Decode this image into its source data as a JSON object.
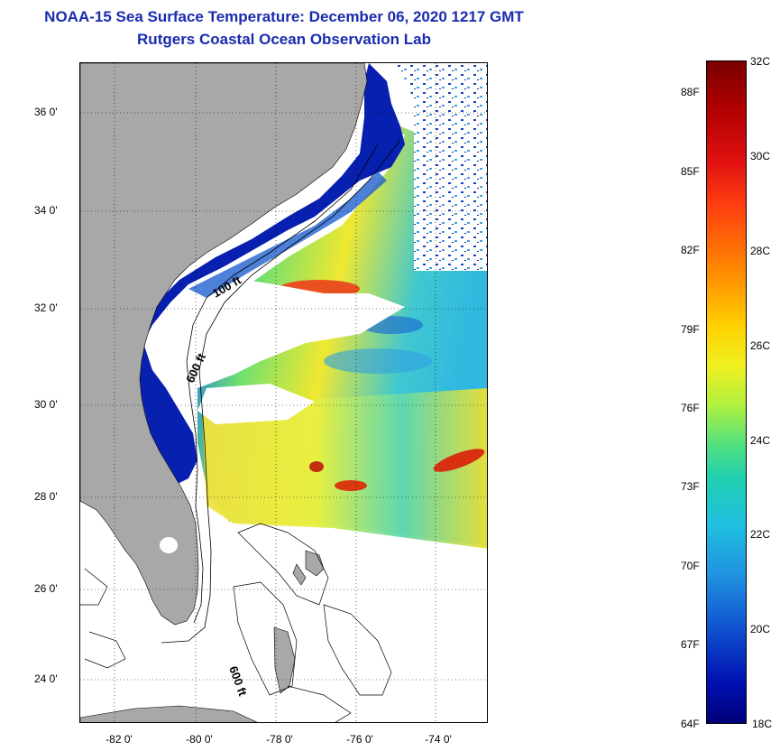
{
  "title": {
    "line1": "NOAA-15 Sea Surface Temperature:  December 06, 2020 1217 GMT",
    "line2": "Rutgers Coastal Ocean Observation Lab"
  },
  "map": {
    "lat_ticks": [
      "36 0'",
      "34 0'",
      "32 0'",
      "30 0'",
      "28 0'",
      "26 0'",
      "24 0'"
    ],
    "lon_ticks": [
      "-82 0'",
      "-80 0'",
      "-78 0'",
      "-76 0'",
      "-74 0'"
    ],
    "contour_labels": [
      "100 ft",
      "600 ft",
      "600 ft"
    ],
    "colors": {
      "land": "#a8a8a8",
      "cloud": "#ffffff",
      "cold": "#0020b0",
      "mid": "#20c8e0",
      "warm": "#f0f020",
      "hot": "#e03010"
    }
  },
  "colorbar": {
    "celsius": [
      "32C",
      "30C",
      "28C",
      "26C",
      "24C",
      "22C",
      "20C",
      "18C"
    ],
    "fahrenheit": [
      "88F",
      "85F",
      "82F",
      "79F",
      "76F",
      "73F",
      "70F",
      "67F",
      "64F"
    ]
  }
}
